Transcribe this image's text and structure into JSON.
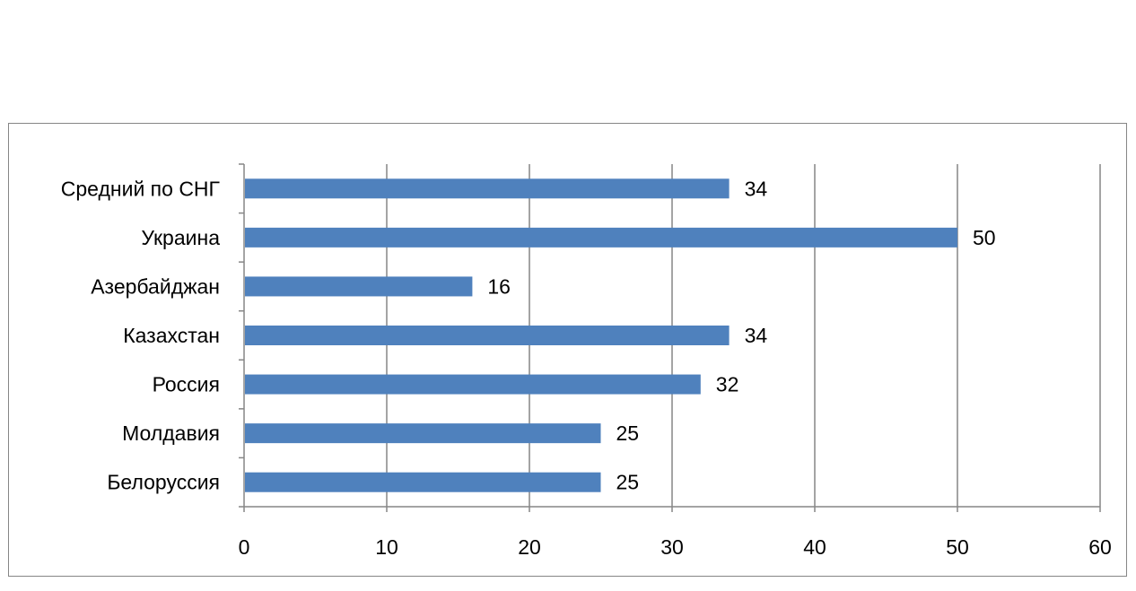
{
  "chart_data": {
    "type": "bar",
    "orientation": "horizontal",
    "title": "",
    "xlabel": "",
    "ylabel": "",
    "categories": [
      "Средний по СНГ",
      "Украина",
      "Азербайджан",
      "Казахстан",
      "Россия",
      "Молдавия",
      "Белоруссия"
    ],
    "values": [
      34,
      50,
      16,
      34,
      32,
      25,
      25
    ],
    "data_labels": [
      "34",
      "50",
      "16",
      "34",
      "32",
      "25",
      "25"
    ],
    "xlim": [
      0,
      60
    ],
    "ticks": [
      0,
      10,
      20,
      30,
      40,
      50,
      60
    ],
    "tick_labels": [
      "0",
      "10",
      "20",
      "30",
      "40",
      "50",
      "60"
    ],
    "grid": true,
    "legend": "none",
    "bar_color": "#4F81BD",
    "grid_color": "#868686"
  }
}
